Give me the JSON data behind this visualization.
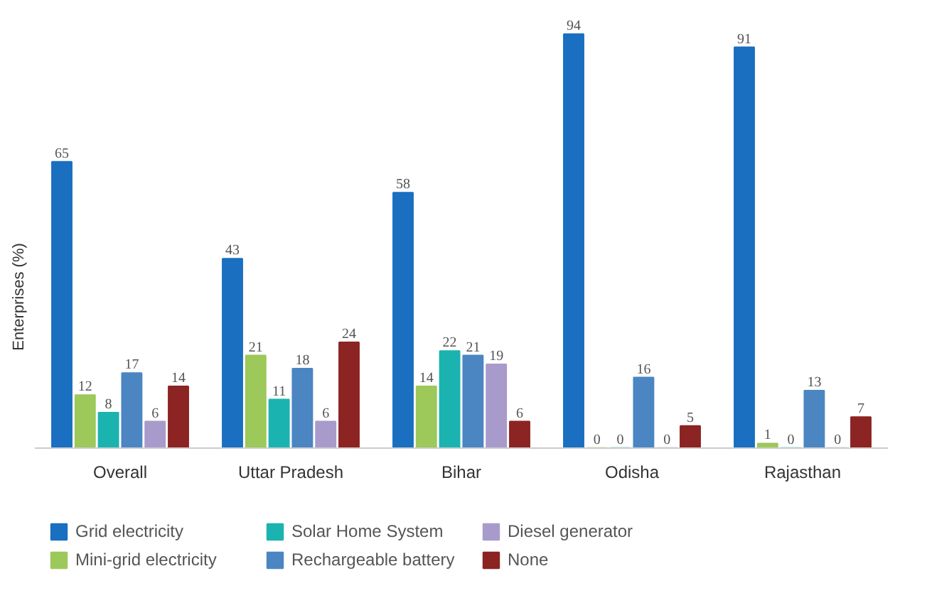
{
  "chart_data": {
    "type": "bar",
    "ylabel": "Enterprises (%)",
    "categories": [
      "Overall",
      "Uttar Pradesh",
      "Bihar",
      "Odisha",
      "Rajasthan"
    ],
    "series": [
      {
        "name": "Grid electricity",
        "color": "#1a6fc0",
        "values": [
          65,
          43,
          58,
          94,
          91
        ]
      },
      {
        "name": "Mini-grid electricity",
        "color": "#9dc85a",
        "values": [
          12,
          21,
          14,
          0,
          1
        ]
      },
      {
        "name": "Solar Home System",
        "color": "#1bb3b0",
        "values": [
          8,
          11,
          22,
          0,
          0
        ]
      },
      {
        "name": "Rechargeable battery",
        "color": "#4b86c3",
        "values": [
          17,
          18,
          21,
          16,
          13
        ]
      },
      {
        "name": "Diesel generator",
        "color": "#a89bcb",
        "values": [
          6,
          6,
          19,
          0,
          0
        ]
      },
      {
        "name": "None",
        "color": "#8b2422",
        "values": [
          14,
          24,
          6,
          5,
          7
        ]
      }
    ],
    "data_labels": true,
    "legend": "bottom",
    "grid": false
  }
}
